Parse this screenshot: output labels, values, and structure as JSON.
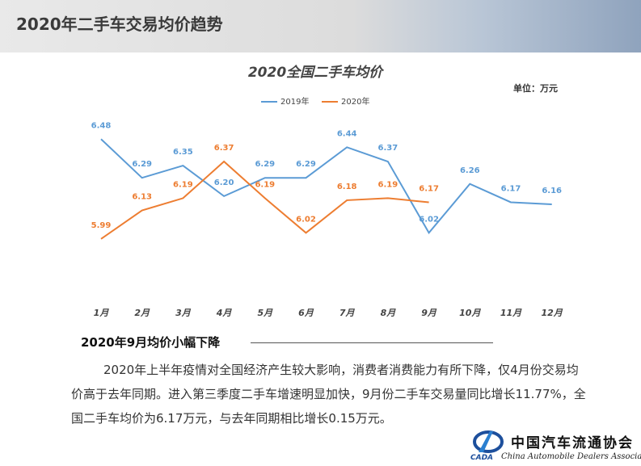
{
  "header": {
    "title": "2020年二手车交易均价趋势"
  },
  "chart_data": {
    "type": "line",
    "title": "2020全国二手车均价",
    "unit": "单位：万元",
    "categories": [
      "1月",
      "2月",
      "3月",
      "4月",
      "5月",
      "6月",
      "7月",
      "8月",
      "9月",
      "10月",
      "11月",
      "12月"
    ],
    "series": [
      {
        "name": "2019年",
        "color": "#5b9bd5",
        "values": [
          6.48,
          6.29,
          6.35,
          6.2,
          6.29,
          6.29,
          6.44,
          6.37,
          6.02,
          6.26,
          6.17,
          6.16
        ],
        "value_labels": [
          "6.48",
          "6.29",
          "6.35",
          "6.20",
          "6.29",
          "6.29",
          "6.44",
          "6.37",
          "6.02",
          "6.26",
          "6.17",
          "6.16"
        ]
      },
      {
        "name": "2020年",
        "color": "#ed7d31",
        "values": [
          5.99,
          6.13,
          6.19,
          6.37,
          6.19,
          6.02,
          6.18,
          6.19,
          6.17,
          null,
          null,
          null
        ],
        "value_labels": [
          "5.99",
          "6.13",
          "6.19",
          "6.37",
          "6.19",
          "6.02",
          "6.18",
          "6.19",
          "6.17",
          null,
          null,
          null
        ]
      }
    ],
    "ylim": [
      5.7,
      6.6
    ]
  },
  "section": {
    "heading": "2020年9月均价小幅下降",
    "paragraph": "2020年上半年疫情对全国经济产生较大影响，消费者消费能力有所下降，仅4月份交易均价高于去年同期。进入第三季度二手车增速明显加快，9月份二手车交易量同比增长11.77%，全国二手车均价为6.17万元，与去年同期相比增长0.15万元。"
  },
  "logo": {
    "name": "中国汽车流通协会",
    "english": "China Automobile Dealers Association",
    "abbr": "CADA"
  }
}
